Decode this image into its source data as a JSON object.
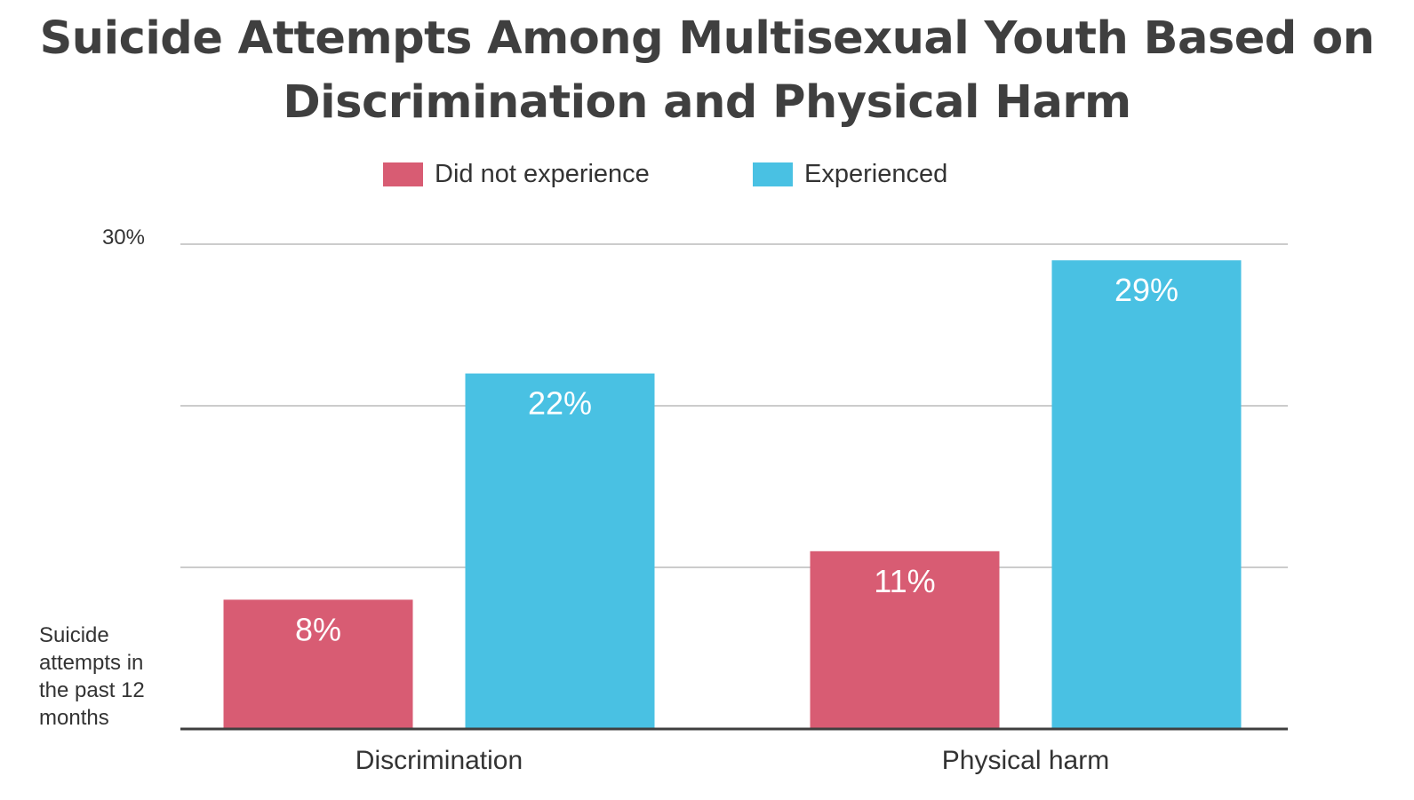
{
  "chart_data": {
    "type": "bar",
    "title": "Suicide Attempts Among Multisexual Youth Based on Discrimination and Physical Harm",
    "ylabel": "Suicide attempts in the past 12 months",
    "xlabel": "",
    "ylim": [
      0,
      30
    ],
    "yticks": [
      {
        "value": 30,
        "label": "30%"
      }
    ],
    "gridlines": [
      10,
      20,
      30
    ],
    "grid": true,
    "legend_position": "top-center",
    "categories": [
      "Discrimination",
      "Physical harm"
    ],
    "series": [
      {
        "name": "Did not experience",
        "color": "#d85c73",
        "values": [
          8,
          11
        ],
        "labels": [
          "8%",
          "11%"
        ]
      },
      {
        "name": "Experienced",
        "color": "#49c1e3",
        "values": [
          22,
          29
        ],
        "labels": [
          "22%",
          "29%"
        ]
      }
    ]
  }
}
